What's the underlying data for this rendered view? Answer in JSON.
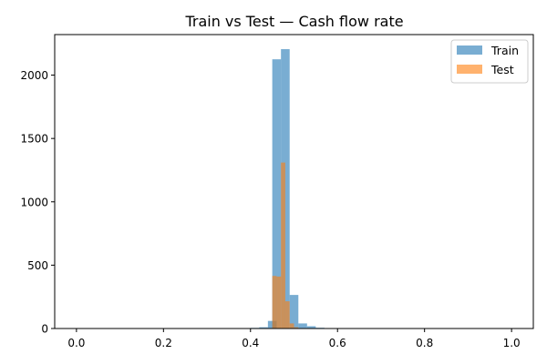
{
  "chart_data": {
    "type": "histogram",
    "title": "Train vs Test —  Cash flow rate",
    "xlabel": "",
    "ylabel": "",
    "xlim": [
      -0.05,
      1.05
    ],
    "ylim": [
      0,
      2320
    ],
    "x_ticks": [
      0.0,
      0.2,
      0.4,
      0.6,
      0.8,
      1.0
    ],
    "x_tick_labels": [
      "0.0",
      "0.2",
      "0.4",
      "0.6",
      "0.8",
      "1.0"
    ],
    "y_ticks": [
      0,
      500,
      1000,
      1500,
      2000
    ],
    "y_tick_labels": [
      "0",
      "500",
      "1000",
      "1500",
      "2000"
    ],
    "legend_position": "top-right",
    "grid": false,
    "series": [
      {
        "name": "Train",
        "color": "#1f77b4",
        "opacity": 0.6,
        "bin_width": 0.02,
        "bins": [
          {
            "x0": 0.4,
            "value": 5
          },
          {
            "x0": 0.42,
            "value": 10
          },
          {
            "x0": 0.44,
            "value": 60
          },
          {
            "x0": 0.45,
            "value": 2125
          },
          {
            "x0": 0.47,
            "value": 2205
          },
          {
            "x0": 0.49,
            "value": 265
          },
          {
            "x0": 0.51,
            "value": 40
          },
          {
            "x0": 0.53,
            "value": 18
          },
          {
            "x0": 0.55,
            "value": 6
          },
          {
            "x0": 0.57,
            "value": 2
          }
        ]
      },
      {
        "name": "Test",
        "color": "#ff7f0e",
        "opacity": 0.6,
        "bin_width": 0.01,
        "bins": [
          {
            "x0": 0.45,
            "value": 415
          },
          {
            "x0": 0.46,
            "value": 410
          },
          {
            "x0": 0.47,
            "value": 1310
          },
          {
            "x0": 0.48,
            "value": 215
          },
          {
            "x0": 0.49,
            "value": 40
          },
          {
            "x0": 0.5,
            "value": 10
          }
        ]
      }
    ]
  }
}
